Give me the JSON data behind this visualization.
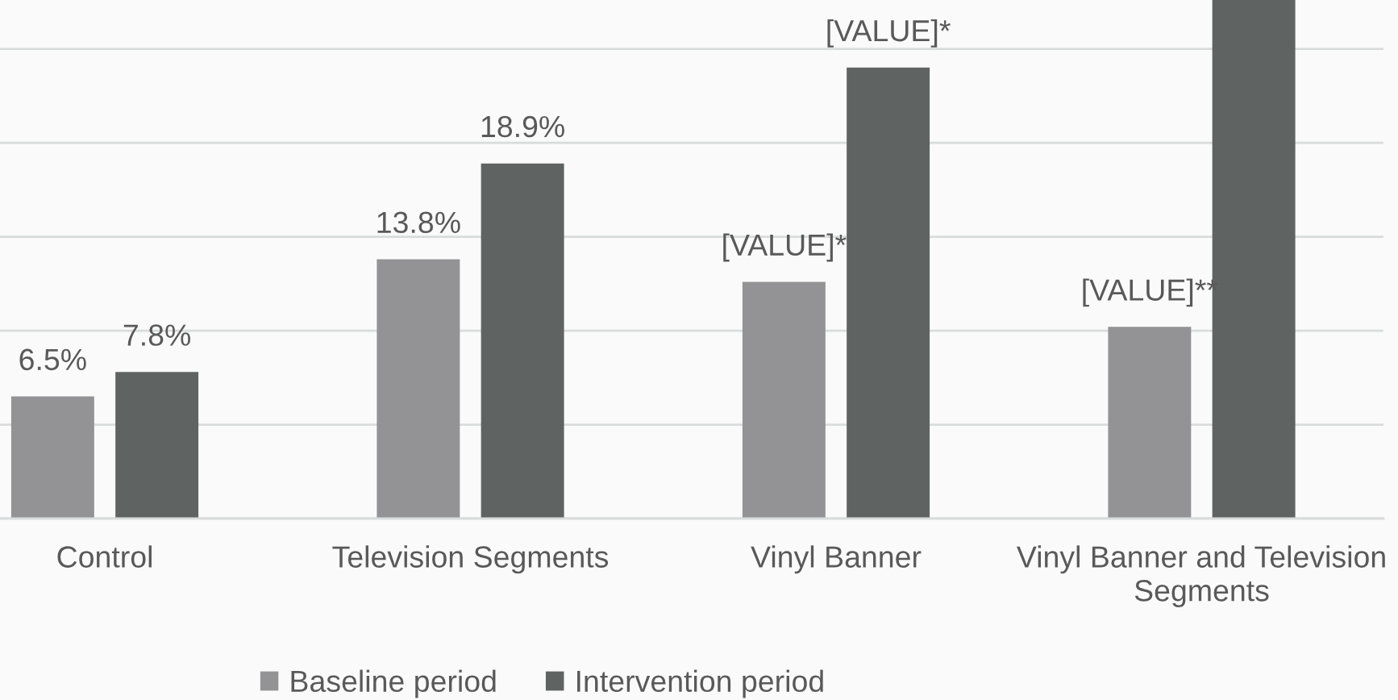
{
  "chart_data": {
    "type": "bar",
    "categories": [
      "Control",
      "Television Segments",
      "Vinyl Banner",
      "Vinyl Banner and Television Segments"
    ],
    "series": [
      {
        "name": "Baseline period",
        "color": "#939396",
        "values": [
          6.5,
          13.8,
          12.6,
          10.2
        ],
        "value_labels": [
          "6.5%",
          "13.8%",
          "[VALUE]*",
          "[VALUE]**"
        ]
      },
      {
        "name": "Intervention period",
        "color": "#5f6463",
        "values": [
          7.8,
          18.9,
          24.0,
          27.6
        ],
        "value_labels": [
          "7.8%",
          "18.9%",
          "[VALUE]*",
          null
        ]
      }
    ],
    "ylim": [
      0,
      27.6
    ],
    "yticks": [
      {
        "value": 0,
        "label": null
      },
      {
        "value": 5,
        "label": null
      },
      {
        "value": 10,
        "label": null
      },
      {
        "value": 15,
        "label": null
      },
      {
        "value": 20,
        "label": null
      },
      {
        "value": 25,
        "label": null
      }
    ],
    "grid": "y",
    "legend": "bottom",
    "tick_labels": "x"
  }
}
